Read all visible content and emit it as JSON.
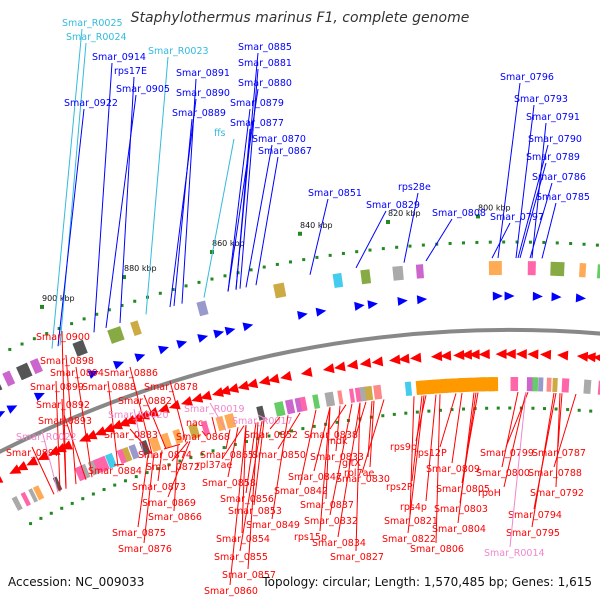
{
  "title": "Staphylothermus marinus F1, complete genome",
  "footer": {
    "accession": "Accession: NC_009033",
    "summary": "Topology: circular; Length: 1,570,485 bp; Genes: 1,615"
  },
  "colors": {
    "forward": "#0000ff",
    "reverse": "#ff0000",
    "rna": "#33bbdd",
    "rna_rev": "#ee88cc",
    "backbone": "#888888",
    "gc": "#228822"
  },
  "kbp_ticks": [
    "900 kbp",
    "880 kbp",
    "860 kbp",
    "840 kbp",
    "820 kbp",
    "800 kbp"
  ],
  "labels_top": [
    {
      "t": "Smar_R0025",
      "type": "rna"
    },
    {
      "t": "Smar_R0024",
      "type": "rna"
    },
    {
      "t": "Smar_R0023",
      "type": "rna"
    },
    {
      "t": "Smar_0914",
      "type": "fwd"
    },
    {
      "t": "rps17E",
      "type": "fwd"
    },
    {
      "t": "Smar_0905",
      "type": "fwd"
    },
    {
      "t": "Smar_0922",
      "type": "fwd"
    },
    {
      "t": "Smar_0885",
      "type": "fwd"
    },
    {
      "t": "Smar_0881",
      "type": "fwd"
    },
    {
      "t": "Smar_0891",
      "type": "fwd"
    },
    {
      "t": "Smar_0880",
      "type": "fwd"
    },
    {
      "t": "Smar_0890",
      "type": "fwd"
    },
    {
      "t": "Smar_0879",
      "type": "fwd"
    },
    {
      "t": "Smar_0889",
      "type": "fwd"
    },
    {
      "t": "Smar_0877",
      "type": "fwd"
    },
    {
      "t": "ffs",
      "type": "rna"
    },
    {
      "t": "Smar_0870",
      "type": "fwd"
    },
    {
      "t": "Smar_0867",
      "type": "fwd"
    },
    {
      "t": "Smar_0851",
      "type": "fwd"
    },
    {
      "t": "rps28e",
      "type": "fwd"
    },
    {
      "t": "Smar_0829",
      "type": "fwd"
    },
    {
      "t": "Smar_0808",
      "type": "fwd"
    },
    {
      "t": "Smar_0796",
      "type": "fwd"
    },
    {
      "t": "Smar_0793",
      "type": "fwd"
    },
    {
      "t": "Smar_0791",
      "type": "fwd"
    },
    {
      "t": "Smar_0790",
      "type": "fwd"
    },
    {
      "t": "Smar_0789",
      "type": "fwd"
    },
    {
      "t": "Smar_0786",
      "type": "fwd"
    },
    {
      "t": "Smar_0797",
      "type": "fwd"
    },
    {
      "t": "Smar_0785",
      "type": "fwd"
    }
  ],
  "labels_bottom": [
    {
      "t": "Smar_0900",
      "type": "rev"
    },
    {
      "t": "Smar_0898",
      "type": "rev"
    },
    {
      "t": "Smar_0894",
      "type": "rev"
    },
    {
      "t": "Smar_0886",
      "type": "rev"
    },
    {
      "t": "Smar_0899",
      "type": "rev"
    },
    {
      "t": "Smar_0888",
      "type": "rev"
    },
    {
      "t": "Smar_0878",
      "type": "rev"
    },
    {
      "t": "Smar_0882",
      "type": "rev"
    },
    {
      "t": "Smar_0892",
      "type": "rev"
    },
    {
      "t": "Smar_R0020",
      "type": "rna_rev"
    },
    {
      "t": "Smar_R0019",
      "type": "rna_rev"
    },
    {
      "t": "Smar_0893",
      "type": "rev"
    },
    {
      "t": "nac",
      "type": "rev"
    },
    {
      "t": "Smar_R0017",
      "type": "rna_rev"
    },
    {
      "t": "Smar_R0022",
      "type": "rna_rev"
    },
    {
      "t": "Smar_0883",
      "type": "rev"
    },
    {
      "t": "Smar_0868",
      "type": "rev"
    },
    {
      "t": "Smar_0852",
      "type": "rev"
    },
    {
      "t": "Smar_0838",
      "type": "rev"
    },
    {
      "t": "Smar_0897",
      "type": "rev"
    },
    {
      "t": "Smar_0865",
      "type": "rev"
    },
    {
      "t": "ndk",
      "type": "rev"
    },
    {
      "t": "Smar_0874",
      "type": "rev"
    },
    {
      "t": "Smar_0850",
      "type": "rev"
    },
    {
      "t": "Smar_0833",
      "type": "rev"
    },
    {
      "t": "rps9p",
      "type": "rev"
    },
    {
      "t": "rps12P",
      "type": "rev"
    },
    {
      "t": "Smar_0799",
      "type": "rev"
    },
    {
      "t": "Smar_0787",
      "type": "rev"
    },
    {
      "t": "Smar_0884",
      "type": "rev"
    },
    {
      "t": "Smar_0872",
      "type": "rev"
    },
    {
      "t": "rpl37ae",
      "type": "rev"
    },
    {
      "t": "gltX",
      "type": "rev"
    },
    {
      "t": "Smar_0809",
      "type": "rev"
    },
    {
      "t": "Smar_0800",
      "type": "rev"
    },
    {
      "t": "Smar_0788",
      "type": "rev"
    },
    {
      "t": "Smar_0873",
      "type": "rev"
    },
    {
      "t": "Smar_0858",
      "type": "rev"
    },
    {
      "t": "Smar_0847",
      "type": "rev"
    },
    {
      "t": "Smar_0830",
      "type": "rev"
    },
    {
      "t": "rpl7ae",
      "type": "rev"
    },
    {
      "t": "rps2P",
      "type": "rev"
    },
    {
      "t": "Smar_0805",
      "type": "rev"
    },
    {
      "t": "rpoH",
      "type": "rev"
    },
    {
      "t": "Smar_0792",
      "type": "rev"
    },
    {
      "t": "Smar_0856",
      "type": "rev"
    },
    {
      "t": "Smar_0842",
      "type": "rev"
    },
    {
      "t": "Smar_0869",
      "type": "rev"
    },
    {
      "t": "Smar_0837",
      "type": "rev"
    },
    {
      "t": "rps4p",
      "type": "rev"
    },
    {
      "t": "Smar_0803",
      "type": "rev"
    },
    {
      "t": "Smar_0794",
      "type": "rev"
    },
    {
      "t": "Smar_0866",
      "type": "rev"
    },
    {
      "t": "Smar_0853",
      "type": "rev"
    },
    {
      "t": "Smar_0849",
      "type": "rev"
    },
    {
      "t": "Smar_0832",
      "type": "rev"
    },
    {
      "t": "Smar_0821",
      "type": "rev"
    },
    {
      "t": "Smar_0875",
      "type": "rev"
    },
    {
      "t": "Smar_0804",
      "type": "rev"
    },
    {
      "t": "Smar_0795",
      "type": "rev"
    },
    {
      "t": "Smar_0854",
      "type": "rev"
    },
    {
      "t": "rps15p",
      "type": "rev"
    },
    {
      "t": "Smar_0822",
      "type": "rev"
    },
    {
      "t": "Smar_0834",
      "type": "rev"
    },
    {
      "t": "Smar_0806",
      "type": "rev"
    },
    {
      "t": "Smar_0876",
      "type": "rev"
    },
    {
      "t": "Smar_R0014",
      "type": "rna_rev"
    },
    {
      "t": "Smar_0855",
      "type": "rev"
    },
    {
      "t": "Smar_0827",
      "type": "rev"
    },
    {
      "t": "Smar_0857",
      "type": "rev"
    },
    {
      "t": "Smar_0860",
      "type": "rev"
    }
  ]
}
